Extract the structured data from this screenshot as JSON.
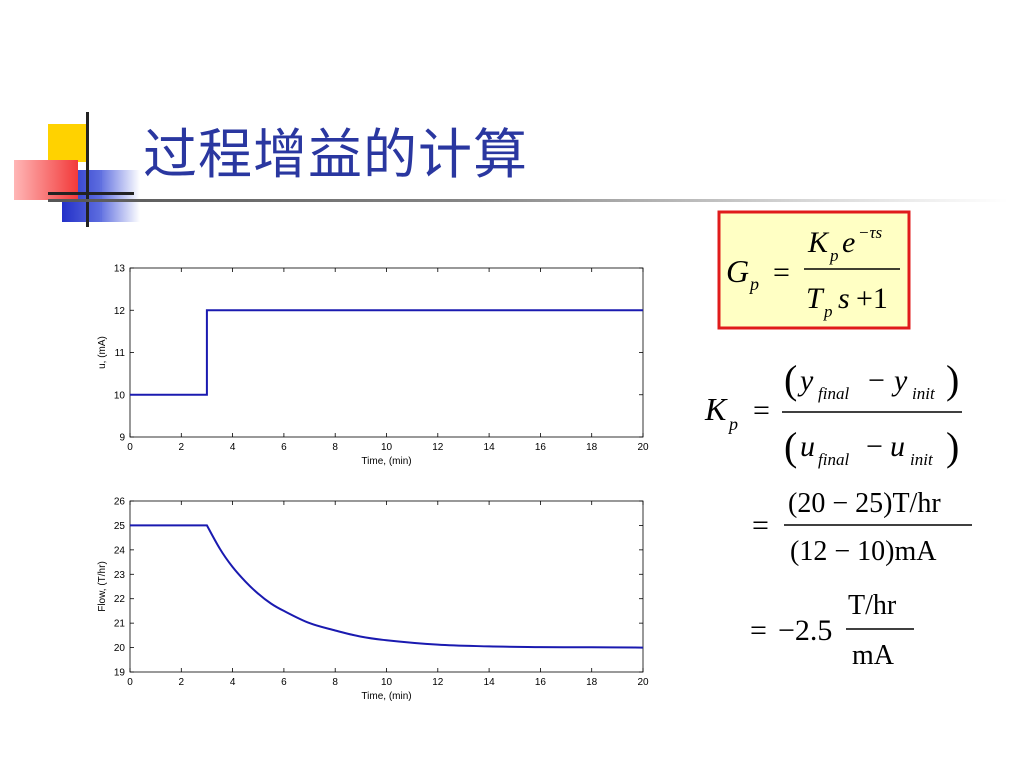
{
  "slide": {
    "title": "过程增益的计算",
    "colors": {
      "title": "#2a37a0",
      "trace": "#1a1ab0",
      "highlight_fill": "#ffffc4",
      "highlight_border": "#e01b1b"
    }
  },
  "formulas": {
    "transfer_function": {
      "lhs": "G",
      "lhs_sub": "p",
      "eq": "=",
      "num_K": "K",
      "num_K_sub": "p",
      "num_e": "e",
      "num_exp": "−τs",
      "den_T": "T",
      "den_T_sub": "p",
      "den_s": "s",
      "den_plus": "+1"
    },
    "gain_definition": {
      "lhs": "K",
      "lhs_sub": "p",
      "eq": "=",
      "num_y": "y",
      "num_y_final_sub": "final",
      "num_minus": "−",
      "num_y2": "y",
      "num_y_init_sub": "init",
      "den_u": "u",
      "den_u_final_sub": "final",
      "den_minus": "−",
      "den_u2": "u",
      "den_u_init_sub": "init"
    },
    "step1": {
      "eq": "=",
      "numerator": "(20 − 25)T/hr",
      "denominator": "(12 − 10)mA"
    },
    "step2": {
      "eq": "=",
      "value": "−2.5",
      "numerator": "T/hr",
      "denominator": "mA"
    }
  },
  "chart_data": [
    {
      "type": "line",
      "xlabel": "Time, (min)",
      "ylabel": "u, (mA)",
      "xlim": [
        0,
        20
      ],
      "ylim": [
        9,
        13
      ],
      "xticks": [
        "0",
        "2",
        "4",
        "6",
        "8",
        "10",
        "12",
        "14",
        "16",
        "18",
        "20"
      ],
      "yticks": [
        "9",
        "10",
        "11",
        "12",
        "13"
      ],
      "grid": false,
      "series": [
        {
          "x": [
            0,
            3,
            3,
            20
          ],
          "y": [
            10,
            10,
            12,
            12
          ]
        }
      ]
    },
    {
      "type": "line",
      "xlabel": "Time, (min)",
      "ylabel": "Flow, (T/hr)",
      "xlim": [
        0,
        20
      ],
      "ylim": [
        19,
        26
      ],
      "xticks": [
        "0",
        "2",
        "4",
        "6",
        "8",
        "10",
        "12",
        "14",
        "16",
        "18",
        "20"
      ],
      "yticks": [
        "19",
        "20",
        "21",
        "22",
        "23",
        "24",
        "25",
        "26"
      ],
      "grid": false,
      "series": [
        {
          "x": [
            0,
            3,
            3.5,
            4,
            4.5,
            5,
            5.5,
            6,
            7,
            8,
            9,
            10,
            12,
            14,
            16,
            18,
            20
          ],
          "y": [
            25,
            25,
            24.05,
            23.3,
            22.7,
            22.2,
            21.8,
            21.5,
            21.0,
            20.7,
            20.45,
            20.3,
            20.12,
            20.05,
            20.02,
            20.01,
            20.0
          ]
        }
      ]
    }
  ]
}
